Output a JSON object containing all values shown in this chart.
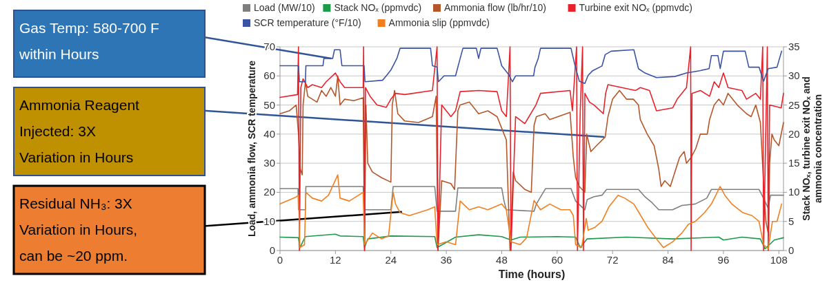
{
  "chart_data": {
    "type": "line",
    "xlabel": "Time (hours)",
    "ylabel": "Load, ammonia flow, SCR temperature",
    "y2label": "Stack NOₓ, turbine exit NOₓ and ammonia concentration",
    "xlim": [
      0,
      109
    ],
    "xticks": [
      0,
      12,
      24,
      36,
      48,
      60,
      72,
      84,
      96,
      108
    ],
    "ylim": [
      0,
      70
    ],
    "yticks": [
      0,
      10,
      20,
      30,
      40,
      50,
      60,
      70
    ],
    "y2lim": [
      0,
      35
    ],
    "y2ticks": [
      0,
      5,
      10,
      15,
      20,
      25,
      30,
      35
    ],
    "grid": "y",
    "legend": "top",
    "annotations": [
      {
        "text": "Gas Temp: 580-700 F within Hours",
        "x": 11.1,
        "y": 66
      },
      {
        "text": "Ammonia Reagent Injected: 3X Variation in Hours",
        "x": 70.2,
        "y": 39
      },
      {
        "text": "Residual NH₃: 3X Variation in Hours, can be ~20 ppm.",
        "x": 26.4,
        "y": 13.3
      }
    ],
    "series": [
      {
        "name": "Load (MW/10)",
        "color": "#7f7f7f",
        "x": [
          0,
          3.9,
          4,
          5.5,
          5.6,
          18,
          18.2,
          24,
          24.5,
          33.5,
          34,
          38,
          38.5,
          48,
          48.5,
          49,
          55,
          55.5,
          57.5,
          63,
          64,
          66,
          66.5,
          68,
          69.7,
          70.7,
          77.6,
          79,
          80.5,
          82,
          85,
          87,
          89.9,
          92.4,
          93.4,
          103.7,
          104.2,
          105.7,
          106.2,
          109
        ],
        "values": [
          21.3,
          21.3,
          14,
          14,
          22,
          22,
          14,
          14,
          22,
          22,
          13.5,
          13.5,
          21.5,
          21.5,
          17,
          14,
          13.5,
          16,
          21.3,
          21.3,
          17,
          14,
          17.5,
          18.5,
          19,
          21,
          21,
          18.5,
          16.5,
          14,
          14,
          15.5,
          16,
          18,
          21,
          21,
          19.5,
          14.5,
          19,
          19
        ]
      },
      {
        "name": "Stack NOₓ (ppmvdc)",
        "color": "#1b9a4a",
        "axis": "y2",
        "x": [
          0,
          4,
          4.3,
          5.5,
          12,
          13,
          18,
          18.3,
          19,
          24,
          33.5,
          34,
          38,
          43,
          48,
          50,
          52,
          60,
          64,
          65,
          66.5,
          75,
          85,
          95,
          96,
          100,
          104,
          105,
          107,
          109
        ],
        "values": [
          2.3,
          2.2,
          0.5,
          2.4,
          2.8,
          2.5,
          2.4,
          0.5,
          2.0,
          2.5,
          2.4,
          0.5,
          2.3,
          2.7,
          2.4,
          1.8,
          2.3,
          2.4,
          2.3,
          0.5,
          2.0,
          2.3,
          2.0,
          2.3,
          1.8,
          2.3,
          2.0,
          0.3,
          1.8,
          2.2
        ]
      },
      {
        "name": "Ammonia flow (lb/hr/10)",
        "color": "#b5562a",
        "x": [
          0,
          2,
          3.5,
          4,
          4.4,
          4.8,
          5,
          5.5,
          6,
          8,
          9,
          10,
          11,
          12,
          12.5,
          13,
          14,
          16,
          18,
          18.3,
          18.6,
          19,
          20,
          22,
          24,
          24.3,
          24.8,
          25.5,
          27,
          30,
          33,
          33.8,
          34.2,
          35,
          37,
          37.8,
          38.5,
          39,
          41,
          43,
          45,
          47,
          48,
          49,
          49.8,
          50.5,
          51,
          53,
          54.4,
          55,
          55.5,
          57.4,
          58.4,
          62.8,
          63.5,
          64,
          64.8,
          66,
          66.4,
          67.3,
          68.5,
          70.4,
          71,
          72,
          73.5,
          75,
          76.5,
          77.6,
          78,
          79.5,
          81,
          82,
          82.5,
          83.3,
          84.5,
          85.5,
          86.5,
          87.5,
          88,
          89,
          90,
          91,
          92.5,
          93,
          94,
          95,
          96,
          97,
          99,
          101,
          102,
          103,
          104,
          104.8,
          105.2,
          105.8,
          106,
          106.5,
          107,
          108,
          109
        ],
        "values": [
          47,
          48,
          50,
          40,
          28,
          26,
          50,
          58,
          53,
          51,
          55,
          53,
          56,
          53,
          60,
          50,
          52,
          51.5,
          52.5,
          0,
          50,
          30,
          27,
          25,
          23.5,
          50,
          55,
          47,
          44.5,
          44,
          46,
          53,
          0,
          24,
          23,
          21,
          48,
          50,
          51,
          47,
          48,
          46,
          42,
          38,
          0,
          27,
          24,
          21,
          20,
          43,
          46,
          47,
          45,
          47.5,
          32,
          25,
          22,
          20,
          40,
          34,
          36,
          39,
          46,
          52,
          55,
          52,
          52,
          50,
          45,
          40,
          36,
          28,
          22,
          24,
          22,
          27,
          32,
          34,
          30,
          32,
          35,
          40,
          40,
          45,
          50,
          52,
          50,
          54,
          50,
          47,
          46,
          50,
          44,
          20,
          10,
          5,
          30,
          40,
          38,
          36,
          44
        ]
      },
      {
        "name": "Turbine exit NOₓ (ppmvdc)",
        "color": "#e8222b",
        "axis": "y2",
        "x": [
          0,
          3.8,
          4,
          4.2,
          4.5,
          5,
          6,
          7,
          9,
          10,
          12,
          13,
          14,
          16,
          18,
          18.1,
          18.3,
          18.5,
          19.5,
          21,
          23,
          24,
          25,
          27,
          33,
          34,
          34.2,
          35,
          37,
          38,
          39,
          43,
          47,
          48,
          49,
          49.8,
          50,
          51,
          53,
          55.4,
          56.4,
          62.8,
          63.3,
          64.2,
          64.4,
          65,
          65.5,
          65.7,
          66,
          67,
          68,
          70,
          70.5,
          71,
          77,
          78,
          80,
          81.5,
          85,
          86,
          88,
          88.9,
          89,
          89.2,
          91,
          93,
          94,
          95,
          96,
          97,
          100,
          101,
          103,
          104,
          104.5,
          104.7,
          105.5,
          105.7,
          106,
          108.5,
          109
        ],
        "values": [
          26.3,
          26.8,
          35,
          0,
          28,
          29.5,
          28,
          28.5,
          28,
          29,
          30.5,
          29,
          28,
          28,
          28,
          35,
          0,
          28,
          26.5,
          25,
          24.6,
          26,
          27,
          26.8,
          27.5,
          35,
          0,
          25,
          23,
          24,
          27.3,
          27.5,
          27.3,
          24,
          23,
          35,
          0,
          23,
          21.8,
          25,
          27,
          27.5,
          24,
          35,
          0,
          24,
          35,
          0,
          27,
          25.5,
          25,
          23.5,
          27,
          28.5,
          27.5,
          28,
          27.5,
          24,
          24.5,
          26,
          28,
          35,
          0,
          27,
          27.5,
          26.5,
          29,
          28,
          30.5,
          28,
          27.5,
          26,
          27,
          26,
          35,
          0,
          35,
          0,
          25,
          24.5,
          27
        ]
      },
      {
        "name": "SCR temperature (°F/10)",
        "color": "#3a53a4",
        "x": [
          0,
          4,
          4.2,
          5.5,
          5.6,
          9.3,
          9.5,
          11.4,
          11.8,
          13,
          13.4,
          18.2,
          18.4,
          22.2,
          23,
          24,
          25.3,
          26,
          32.6,
          33,
          34,
          34.3,
          35.5,
          38,
          39,
          39.6,
          42.5,
          43,
          43.5,
          47,
          48,
          49.5,
          50.3,
          51,
          54.9,
          55.2,
          55.9,
          56.4,
          63,
          63.8,
          64.8,
          66,
          66.7,
          67.7,
          69.7,
          70.4,
          71.7,
          76.6,
          77.6,
          79,
          81.5,
          85.5,
          88,
          90.9,
          92.9,
          93.4,
          94.8,
          95.3,
          96,
          100.7,
          101.5,
          103.7,
          104.7,
          105.7,
          107.6,
          108.6
        ],
        "values": [
          63.5,
          63.5,
          58,
          58,
          63.5,
          63.5,
          66,
          66,
          69,
          69,
          63.5,
          63.5,
          58,
          58.5,
          60,
          62,
          66,
          69.5,
          69.5,
          63.5,
          63,
          58,
          60,
          60,
          66,
          69.5,
          69.5,
          66,
          69.5,
          69.5,
          63.5,
          60.5,
          58,
          60,
          60,
          63,
          66,
          69.5,
          69.5,
          64,
          58.2,
          57.4,
          60.2,
          61.8,
          63.4,
          67.3,
          68.5,
          69,
          62.5,
          61,
          59.4,
          59.8,
          61,
          61.8,
          62.5,
          67,
          67,
          62.5,
          68.5,
          68.5,
          63,
          63,
          58.2,
          62.5,
          63,
          68.5
        ]
      },
      {
        "name": "Ammonia slip (ppmvdc)",
        "color": "#f27f1f",
        "axis": "y2",
        "x": [
          0,
          3.5,
          4,
          4.3,
          5.3,
          5.6,
          7,
          9,
          10.5,
          12.5,
          13,
          15,
          17,
          18,
          18.3,
          20,
          22,
          23.5,
          24.5,
          25,
          26,
          28,
          32,
          33.5,
          34,
          36,
          38,
          39,
          41,
          43,
          45,
          48,
          49,
          50,
          52,
          53.4,
          55,
          56.4,
          58.4,
          60.8,
          62.8,
          63.5,
          64,
          65.3,
          66.3,
          66.7,
          68.2,
          69.7,
          71.2,
          73.2,
          74.6,
          76.6,
          78.1,
          79.6,
          81.5,
          83,
          85,
          87,
          88.4,
          89.9,
          91.9,
          93.4,
          95.3,
          96.3,
          97.8,
          100.2,
          102.2,
          103.7,
          104.7,
          105.7,
          106.6,
          107.6,
          108.6
        ],
        "values": [
          8,
          9.2,
          9.5,
          0.5,
          1,
          10,
          9,
          8.5,
          9.5,
          13,
          9,
          8.5,
          9.5,
          10,
          1,
          3,
          2,
          2.5,
          10,
          8,
          6.5,
          6,
          7,
          7.5,
          1,
          1.5,
          1,
          8.5,
          7,
          7.5,
          7,
          8,
          7,
          1.5,
          1,
          2.2,
          8.6,
          7,
          8,
          7,
          7,
          6,
          1,
          0.5,
          5.5,
          3.5,
          4,
          5,
          7.5,
          9.5,
          9,
          8,
          6,
          4,
          2,
          0.5,
          1.5,
          3,
          4.5,
          5,
          6.5,
          8,
          11,
          9.5,
          8,
          6.5,
          6,
          5,
          1,
          0.3,
          5,
          5,
          8
        ]
      }
    ]
  }
}
